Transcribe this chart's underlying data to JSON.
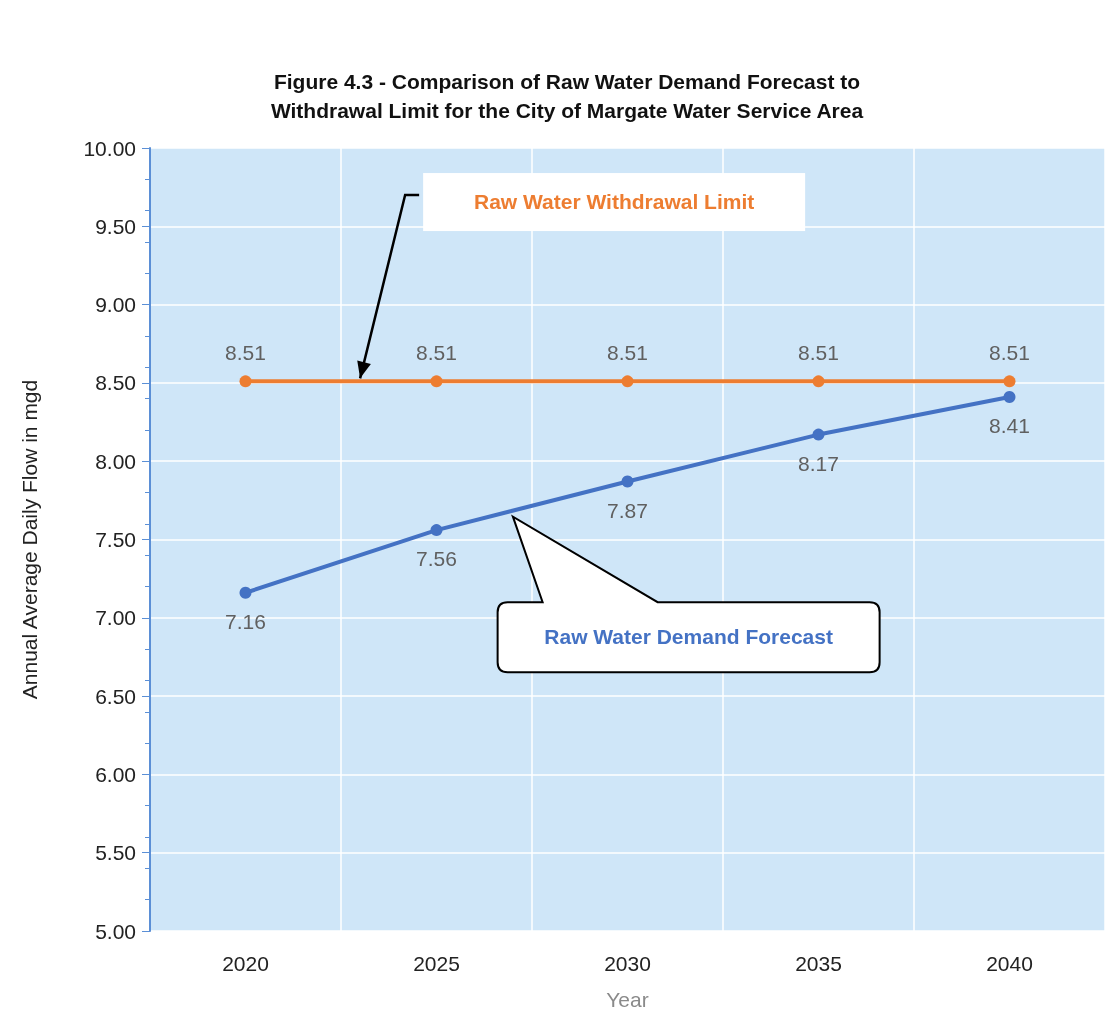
{
  "chart_data": {
    "type": "line",
    "title": "Figure 4.3 - Comparison of Raw Water Demand Forecast to\nWithdrawal Limit for the City of Margate Water Service Area",
    "xlabel": "Year",
    "ylabel": "Annual Average Daily Flow in mgd",
    "categories": [
      "2020",
      "2025",
      "2030",
      "2035",
      "2040"
    ],
    "series": [
      {
        "name": "Raw Water Withdrawal Limit",
        "color": "#ed7d31",
        "values": [
          8.51,
          8.51,
          8.51,
          8.51,
          8.51
        ]
      },
      {
        "name": "Raw Water Demand Forecast",
        "color": "#4472c4",
        "values": [
          7.16,
          7.56,
          7.87,
          8.17,
          8.41
        ]
      }
    ],
    "ylim": [
      5,
      10
    ],
    "yticks": [
      {
        "value": 5,
        "label": "5.00"
      },
      {
        "value": 5.5,
        "label": "5.50"
      },
      {
        "value": 6,
        "label": "6.00"
      },
      {
        "value": 6.5,
        "label": "6.50"
      },
      {
        "value": 7,
        "label": "7.00"
      },
      {
        "value": 7.5,
        "label": "7.50"
      },
      {
        "value": 8,
        "label": "8.00"
      },
      {
        "value": 8.5,
        "label": "8.50"
      },
      {
        "value": 9,
        "label": "9.00"
      },
      {
        "value": 9.5,
        "label": "9.50"
      },
      {
        "value": 10,
        "label": "10.00"
      }
    ],
    "grid": true,
    "legend": false,
    "marker": "circle",
    "line_style": "solid",
    "data_labels": true
  }
}
